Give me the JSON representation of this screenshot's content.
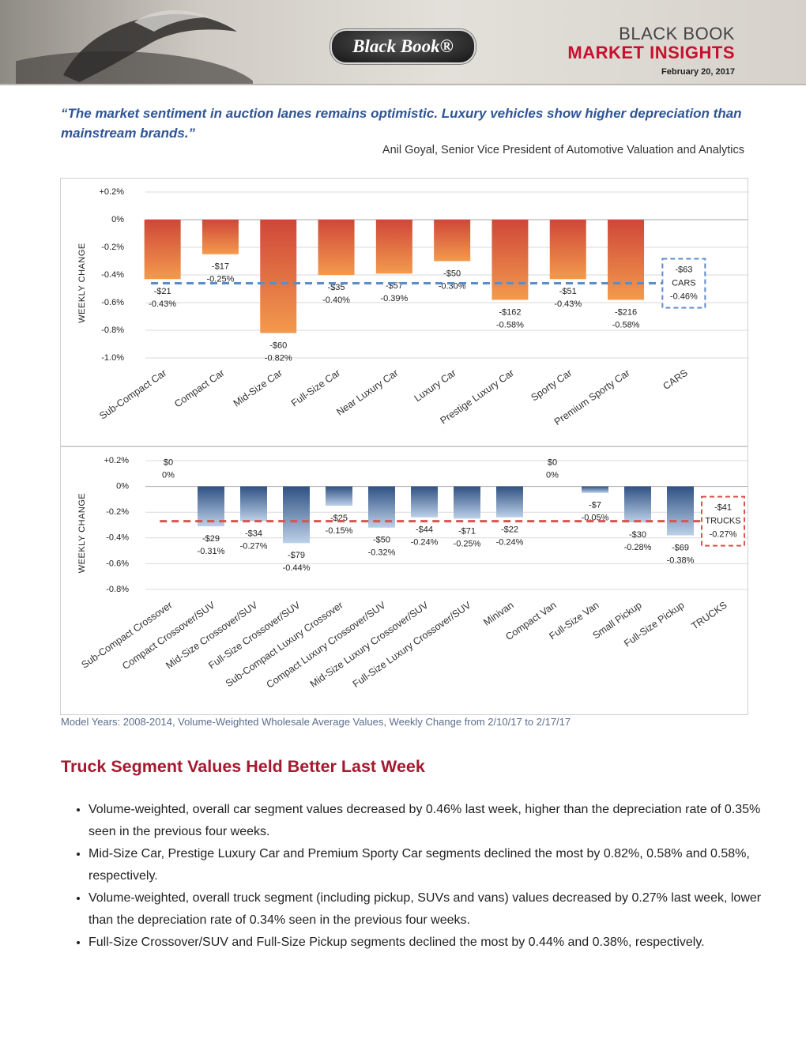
{
  "header": {
    "logo": "Black Book®",
    "brand": "BLACK BOOK",
    "title": "MARKET INSIGHTS",
    "date": "February 20, 2017"
  },
  "quote": {
    "text": "“The market sentiment in auction lanes remains optimistic. Luxury vehicles show higher depreciation than mainstream brands.”",
    "attribution": "Anil Goyal, Senior Vice President of Automotive Valuation and Analytics"
  },
  "chart_data": [
    {
      "type": "bar",
      "y_label": "WEEKLY CHANGE",
      "categories": [
        "Sub-Compact Car",
        "Compact Car",
        "Mid-Size Car",
        "Full-Size Car",
        "Near Luxury Car",
        "Luxury Car",
        "Prestige Luxury Car",
        "Sporty Car",
        "Premium Sporty Car",
        "CARS"
      ],
      "values": [
        -0.43,
        -0.25,
        -0.82,
        -0.4,
        -0.39,
        -0.3,
        -0.58,
        -0.43,
        -0.58,
        null
      ],
      "value_labels": [
        "-0.43%",
        "-0.25%",
        "-0.82%",
        "-0.40%",
        "-0.39%",
        "-0.30%",
        "-0.58%",
        "-0.43%",
        "-0.58%",
        null
      ],
      "dollar_labels": [
        "-$21",
        "-$17",
        "-$60",
        "-$35",
        "-$57",
        "-$50",
        "-$162",
        "-$51",
        "-$216",
        null
      ],
      "gradient": [
        "#cf4739",
        "#f39a4d"
      ],
      "average": {
        "name": "CARS",
        "value": -0.46,
        "value_label": "-0.46%",
        "dollar_label": "-$63",
        "color": "#5b8ccc"
      },
      "ylim": [
        -1.0,
        0.2
      ],
      "yticks": [
        {
          "value": 0.2,
          "label": "+0.2%"
        },
        {
          "value": 0,
          "label": "0%"
        },
        {
          "value": -0.2,
          "label": "-0.2%"
        },
        {
          "value": -0.4,
          "label": "-0.4%"
        },
        {
          "value": -0.6,
          "label": "-0.6%"
        },
        {
          "value": -0.8,
          "label": "-0.8%"
        },
        {
          "value": -1.0,
          "label": "-1.0%"
        }
      ],
      "grid": true
    },
    {
      "type": "bar",
      "y_label": "WEEKLY CHANGE",
      "categories": [
        "Sub-Compact Crossover",
        "Compact Crossover/SUV",
        "Mid-Size Crossover/SUV",
        "Full-Size Crossover/SUV",
        "Sub-Compact Luxury Crossover",
        "Compact Luxury Crossover/SUV",
        "Mid-Size Luxury Crossover/SUV",
        "Full-Size Luxury Crossover/SUV",
        "Minivan",
        "Compact Van",
        "Full-Size Van",
        "Small Pickup",
        "Full-Size Pickup",
        "TRUCKS"
      ],
      "values": [
        0,
        -0.31,
        -0.27,
        -0.44,
        -0.15,
        -0.32,
        -0.24,
        -0.25,
        -0.24,
        0,
        -0.05,
        -0.28,
        -0.38,
        null
      ],
      "value_labels": [
        "0%",
        "-0.31%",
        "-0.27%",
        "-0.44%",
        "-0.15%",
        "-0.32%",
        "-0.24%",
        "-0.25%",
        "-0.24%",
        "0%",
        "-0.05%",
        "-0.28%",
        "-0.38%",
        null
      ],
      "dollar_labels": [
        "$0",
        "-$29",
        "-$34",
        "-$79",
        "-$25",
        "-$50",
        "-$44",
        "-$71",
        "-$22",
        "$0",
        "-$7",
        "-$30",
        "-$69",
        null
      ],
      "gradient": [
        "#2f5183",
        "#bcd0e8"
      ],
      "average": {
        "name": "TRUCKS",
        "value": -0.27,
        "value_label": "-0.27%",
        "dollar_label": "-$41",
        "color": "#d9534f"
      },
      "ylim": [
        -0.8,
        0.2
      ],
      "yticks": [
        {
          "value": 0.2,
          "label": "+0.2%"
        },
        {
          "value": 0,
          "label": "0%"
        },
        {
          "value": -0.2,
          "label": "-0.2%"
        },
        {
          "value": -0.4,
          "label": "-0.4%"
        },
        {
          "value": -0.6,
          "label": "-0.6%"
        },
        {
          "value": -0.8,
          "label": "-0.8%"
        }
      ],
      "grid": true
    }
  ],
  "caption": "Model Years: 2008-2014, Volume-Weighted Wholesale Average Values, Weekly Change from 2/10/17 to 2/17/17",
  "section": {
    "title": "Truck Segment Values Held Better Last Week",
    "bullets": [
      "Volume-weighted, overall car segment values decreased by 0.46% last week, higher than the depreciation rate of 0.35% seen in the previous four weeks.",
      "Mid-Size Car, Prestige Luxury Car and Premium Sporty Car segments declined the most by 0.82%, 0.58% and 0.58%, respectively.",
      "Volume-weighted, overall truck segment (including pickup, SUVs and vans) values decreased by 0.27% last week, lower than the depreciation rate of 0.34% seen in the previous four weeks.",
      "Full-Size Crossover/SUV and Full-Size Pickup segments declined the most by 0.44% and 0.38%, respectively."
    ]
  }
}
